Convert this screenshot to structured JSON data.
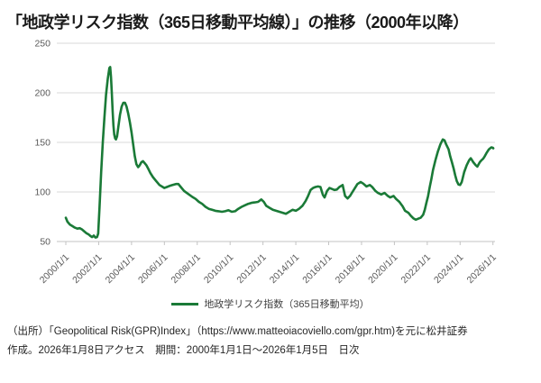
{
  "page": {
    "title": "「地政学リスク指数（365日移動平均線）」の推移（2000年以降）"
  },
  "legend": {
    "label": "地政学リスク指数（365日移動平均）"
  },
  "footer": {
    "line1": "（出所）「Geopolitical Risk(GPR)Index」（https://www.matteoiacoviello.com/gpr.htm)を元に松井証券",
    "line2": "作成。2026年1月8日アクセス　期間：2000年1月1日～2026年1月5日　日次"
  },
  "colors": {
    "line": "#1a7a37",
    "grid": "#d9d9d9",
    "axis": "#c3c3c3",
    "tick_text": "#595959",
    "title_text": "#1a1a1a"
  },
  "chart_data": {
    "type": "line",
    "title": "「地政学リスク指数（365日移動平均線）」の推移（2000年以降）",
    "xlabel": "",
    "ylabel": "",
    "ylim": [
      50,
      250
    ],
    "yticks": [
      50,
      100,
      150,
      200,
      250
    ],
    "xtick_years": [
      2000,
      2002,
      2004,
      2006,
      2008,
      2010,
      2012,
      2014,
      2016,
      2018,
      2020,
      2022,
      2024,
      2026
    ],
    "xtick_labels": [
      "2000/1/1",
      "2002/1/1",
      "2004/1/1",
      "2006/1/1",
      "2008/1/1",
      "2010/1/1",
      "2012/1/1",
      "2014/1/1",
      "2016/1/1",
      "2018/1/1",
      "2020/1/1",
      "2022/1/1",
      "2024/1/1",
      "2026/1/1"
    ],
    "grid": "horizontal",
    "legend_position": "bottom",
    "series": [
      {
        "name": "地政学リスク指数（365日移動平均）",
        "color": "#1a7a37",
        "x_unit": "decimal_year",
        "points": [
          [
            2000.0,
            74
          ],
          [
            2000.1,
            70
          ],
          [
            2000.25,
            67
          ],
          [
            2000.4,
            65.5
          ],
          [
            2000.55,
            64
          ],
          [
            2000.7,
            63
          ],
          [
            2000.85,
            63.5
          ],
          [
            2001.0,
            62
          ],
          [
            2001.1,
            60.5
          ],
          [
            2001.25,
            58.5
          ],
          [
            2001.4,
            57
          ],
          [
            2001.5,
            55.5
          ],
          [
            2001.6,
            54.5
          ],
          [
            2001.7,
            56
          ],
          [
            2001.8,
            54
          ],
          [
            2001.9,
            54.5
          ],
          [
            2001.97,
            58
          ],
          [
            2002.05,
            85
          ],
          [
            2002.15,
            120
          ],
          [
            2002.25,
            150
          ],
          [
            2002.35,
            175
          ],
          [
            2002.45,
            198
          ],
          [
            2002.55,
            214
          ],
          [
            2002.65,
            225
          ],
          [
            2002.7,
            226
          ],
          [
            2002.75,
            216
          ],
          [
            2002.8,
            200
          ],
          [
            2002.85,
            182
          ],
          [
            2002.9,
            167
          ],
          [
            2002.95,
            158
          ],
          [
            2003.0,
            154
          ],
          [
            2003.05,
            153
          ],
          [
            2003.12,
            156
          ],
          [
            2003.2,
            166
          ],
          [
            2003.3,
            178
          ],
          [
            2003.4,
            186
          ],
          [
            2003.5,
            190
          ],
          [
            2003.6,
            190
          ],
          [
            2003.7,
            186
          ],
          [
            2003.8,
            179
          ],
          [
            2003.9,
            170
          ],
          [
            2004.0,
            160
          ],
          [
            2004.1,
            148
          ],
          [
            2004.2,
            136
          ],
          [
            2004.3,
            128
          ],
          [
            2004.4,
            125
          ],
          [
            2004.5,
            127
          ],
          [
            2004.6,
            130
          ],
          [
            2004.7,
            131
          ],
          [
            2004.8,
            129
          ],
          [
            2004.9,
            127
          ],
          [
            2005.0,
            124
          ],
          [
            2005.15,
            119
          ],
          [
            2005.3,
            115
          ],
          [
            2005.5,
            111
          ],
          [
            2005.7,
            107
          ],
          [
            2005.9,
            105
          ],
          [
            2006.0,
            104
          ],
          [
            2006.15,
            105
          ],
          [
            2006.3,
            106
          ],
          [
            2006.5,
            107
          ],
          [
            2006.7,
            108
          ],
          [
            2006.85,
            108
          ],
          [
            2007.0,
            105
          ],
          [
            2007.2,
            101
          ],
          [
            2007.45,
            98
          ],
          [
            2007.7,
            95
          ],
          [
            2007.9,
            93
          ],
          [
            2008.1,
            90
          ],
          [
            2008.3,
            88
          ],
          [
            2008.5,
            85
          ],
          [
            2008.7,
            83
          ],
          [
            2008.9,
            82
          ],
          [
            2009.1,
            81
          ],
          [
            2009.3,
            80.5
          ],
          [
            2009.5,
            80
          ],
          [
            2009.7,
            80.5
          ],
          [
            2009.9,
            81.5
          ],
          [
            2010.1,
            80
          ],
          [
            2010.3,
            80.5
          ],
          [
            2010.5,
            83
          ],
          [
            2010.7,
            85
          ],
          [
            2010.9,
            86.5
          ],
          [
            2011.1,
            88
          ],
          [
            2011.3,
            89
          ],
          [
            2011.5,
            89.5
          ],
          [
            2011.7,
            90
          ],
          [
            2011.9,
            92.5
          ],
          [
            2012.05,
            90
          ],
          [
            2012.2,
            86
          ],
          [
            2012.4,
            84
          ],
          [
            2012.6,
            82
          ],
          [
            2012.8,
            81
          ],
          [
            2013.0,
            80
          ],
          [
            2013.2,
            79
          ],
          [
            2013.4,
            78
          ],
          [
            2013.6,
            80
          ],
          [
            2013.8,
            82
          ],
          [
            2014.0,
            81
          ],
          [
            2014.2,
            83
          ],
          [
            2014.4,
            86
          ],
          [
            2014.6,
            91
          ],
          [
            2014.75,
            96
          ],
          [
            2014.9,
            102
          ],
          [
            2015.05,
            104
          ],
          [
            2015.2,
            105
          ],
          [
            2015.35,
            105.5
          ],
          [
            2015.5,
            105
          ],
          [
            2015.65,
            97
          ],
          [
            2015.75,
            94.5
          ],
          [
            2015.9,
            101
          ],
          [
            2016.05,
            104
          ],
          [
            2016.2,
            103
          ],
          [
            2016.35,
            102
          ],
          [
            2016.5,
            102.5
          ],
          [
            2016.65,
            105
          ],
          [
            2016.85,
            107
          ],
          [
            2017.0,
            96
          ],
          [
            2017.15,
            93.5
          ],
          [
            2017.3,
            96
          ],
          [
            2017.45,
            100
          ],
          [
            2017.6,
            104
          ],
          [
            2017.75,
            108
          ],
          [
            2017.95,
            110
          ],
          [
            2018.1,
            108.5
          ],
          [
            2018.3,
            105.5
          ],
          [
            2018.5,
            107
          ],
          [
            2018.65,
            105
          ],
          [
            2018.85,
            101
          ],
          [
            2019.0,
            99
          ],
          [
            2019.2,
            97.5
          ],
          [
            2019.4,
            99
          ],
          [
            2019.6,
            96
          ],
          [
            2019.75,
            94.5
          ],
          [
            2019.95,
            96
          ],
          [
            2020.1,
            93
          ],
          [
            2020.3,
            90
          ],
          [
            2020.5,
            85.5
          ],
          [
            2020.65,
            81
          ],
          [
            2020.85,
            79
          ],
          [
            2021.0,
            76
          ],
          [
            2021.15,
            73.5
          ],
          [
            2021.3,
            72
          ],
          [
            2021.45,
            73
          ],
          [
            2021.6,
            74
          ],
          [
            2021.75,
            77
          ],
          [
            2021.85,
            82
          ],
          [
            2021.95,
            89
          ],
          [
            2022.05,
            96
          ],
          [
            2022.15,
            105
          ],
          [
            2022.25,
            113
          ],
          [
            2022.35,
            122
          ],
          [
            2022.5,
            132
          ],
          [
            2022.65,
            141
          ],
          [
            2022.8,
            148
          ],
          [
            2022.95,
            153
          ],
          [
            2023.05,
            152
          ],
          [
            2023.15,
            148
          ],
          [
            2023.3,
            143
          ],
          [
            2023.4,
            136
          ],
          [
            2023.5,
            130
          ],
          [
            2023.6,
            124
          ],
          [
            2023.7,
            117
          ],
          [
            2023.8,
            111
          ],
          [
            2023.9,
            107.5
          ],
          [
            2024.0,
            107
          ],
          [
            2024.1,
            110
          ],
          [
            2024.25,
            120
          ],
          [
            2024.4,
            127
          ],
          [
            2024.55,
            132
          ],
          [
            2024.65,
            134
          ],
          [
            2024.8,
            130
          ],
          [
            2024.95,
            127
          ],
          [
            2025.05,
            125.5
          ],
          [
            2025.2,
            130
          ],
          [
            2025.3,
            132
          ],
          [
            2025.4,
            133.5
          ],
          [
            2025.5,
            136
          ],
          [
            2025.6,
            139
          ],
          [
            2025.75,
            143
          ],
          [
            2025.9,
            145
          ],
          [
            2026.0,
            144.5
          ],
          [
            2026.02,
            144
          ]
        ]
      }
    ]
  }
}
